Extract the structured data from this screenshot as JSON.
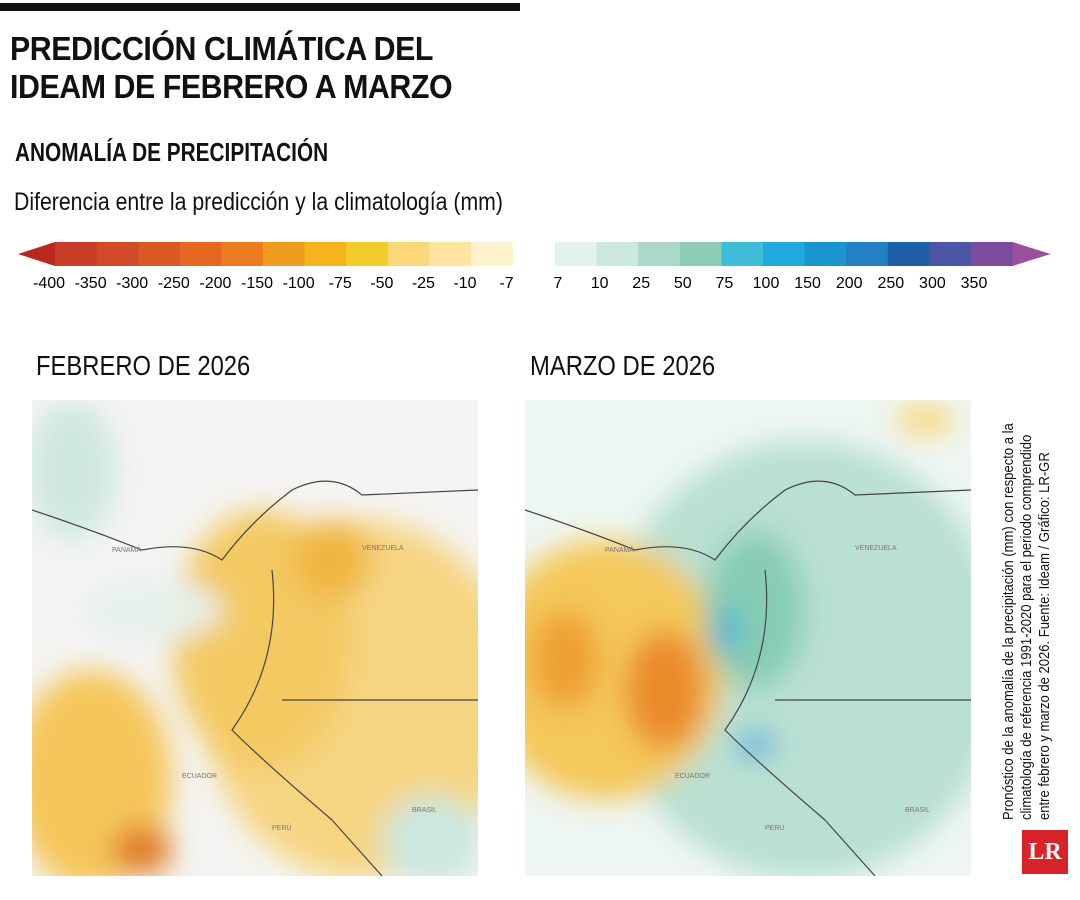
{
  "header": {
    "title_line1": "PREDICCIÓN CLIMÁTICA DEL",
    "title_line2": "IDEAM DE FEBRERO A MARZO",
    "section": "ANOMALÍA DE PRECIPITACIÓN",
    "subtitle": "Diferencia entre la predicción y la climatología (mm)"
  },
  "legend": {
    "negative": {
      "colors": [
        "#b8281f",
        "#c83d26",
        "#d14b28",
        "#da5a26",
        "#e4681f",
        "#ec7c22",
        "#f09c1f",
        "#f5b41e",
        "#f4cb2c",
        "#fbd77a",
        "#fde4a0",
        "#fdf2cc"
      ],
      "ticks": [
        -400,
        -350,
        -300,
        -250,
        -200,
        -150,
        -100,
        -75,
        -50,
        -25,
        -10,
        -7
      ]
    },
    "positive": {
      "colors": [
        "#e4f2ed",
        "#cbe7df",
        "#aad9cb",
        "#8ccdb8",
        "#3fbcd7",
        "#23a9e1",
        "#1a95cf",
        "#2380c2",
        "#1e60a8",
        "#4d56a6",
        "#7b4b9f",
        "#9b4f9e"
      ],
      "ticks": [
        7,
        10,
        25,
        50,
        75,
        100,
        150,
        200,
        250,
        300,
        350
      ]
    }
  },
  "maps": [
    {
      "title": "FEBRERO DE 2026",
      "labels": [
        "PANAMÁ",
        "VENEZUELA",
        "ECUADOR",
        "PERÚ",
        "BRASIL"
      ]
    },
    {
      "title": "MARZO DE 2026",
      "labels": [
        "PANAMÁ",
        "VENEZUELA",
        "ECUADOR",
        "PERÚ",
        "BRASIL"
      ]
    }
  ],
  "note": {
    "line1": "Pronóstico de la anomalía de la precipitación (mm) con respecto a la",
    "line2": "climatología de referencia 1991-2020 para el periodo comprendido",
    "line3": "entre febrero y marzo de 2026. Fuente: Ideam / Gráfico: LR-GR"
  },
  "logo": "LR"
}
